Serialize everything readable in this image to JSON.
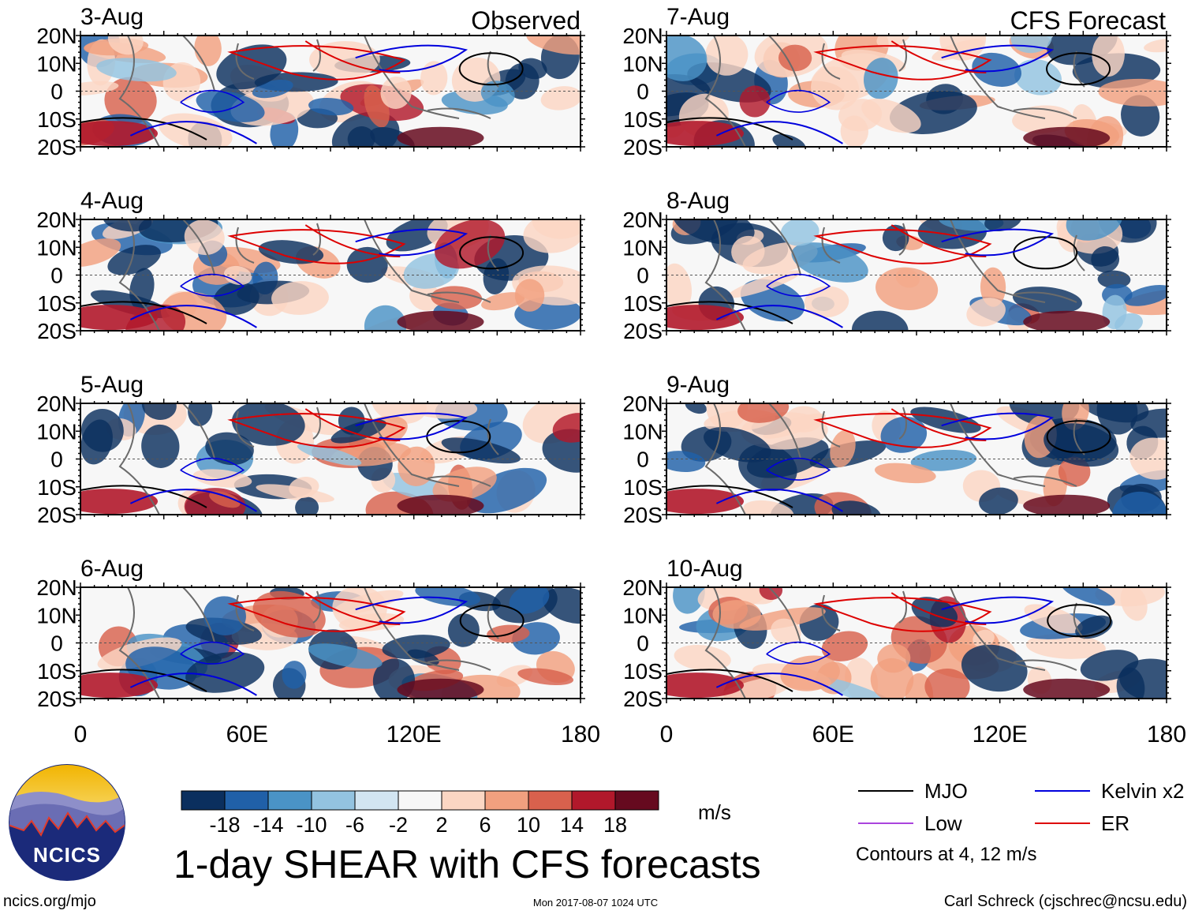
{
  "chart_data": {
    "type": "heatmap",
    "title": "1-day SHEAR with CFS forecasts",
    "units": "m/s",
    "x_ticks": [
      "0",
      "60E",
      "120E",
      "180"
    ],
    "x_values": [
      0,
      60,
      120,
      180
    ],
    "xlim": [
      0,
      180
    ],
    "y_ticks": [
      "20N",
      "10N",
      "0",
      "10S",
      "20S"
    ],
    "y_values": [
      20,
      10,
      0,
      -10,
      -20
    ],
    "ylim": [
      -20,
      20
    ],
    "columns": [
      {
        "label": "Observed",
        "panels": [
          {
            "date": "3-Aug",
            "seed": 11
          },
          {
            "date": "4-Aug",
            "seed": 23
          },
          {
            "date": "5-Aug",
            "seed": 37
          },
          {
            "date": "6-Aug",
            "seed": 41
          }
        ]
      },
      {
        "label": "CFS Forecast",
        "panels": [
          {
            "date": "7-Aug",
            "seed": 53
          },
          {
            "date": "8-Aug",
            "seed": 67
          },
          {
            "date": "9-Aug",
            "seed": 71
          },
          {
            "date": "10-Aug",
            "seed": 89
          }
        ]
      }
    ],
    "colorbar": {
      "colors": [
        "#0b2f5e",
        "#2060a8",
        "#4a93c6",
        "#93c3e0",
        "#d2e5f1",
        "#f7f7f7",
        "#fbd6c3",
        "#f1a07f",
        "#d8614d",
        "#b1182b",
        "#660a1f"
      ],
      "labels": [
        "-18",
        "-14",
        "-10",
        "-6",
        "-2",
        "2",
        "6",
        "10",
        "14",
        "18"
      ]
    },
    "legend": [
      {
        "label": "MJO",
        "color": "#000000"
      },
      {
        "label": "Kelvin x2",
        "color": "#0000dd"
      },
      {
        "label": "Low",
        "color": "#aa44dd"
      },
      {
        "label": "ER",
        "color": "#dd0000"
      }
    ],
    "contour_note": "Contours at 4, 12 m/s"
  },
  "footer": {
    "logo_text": "NCICS",
    "site": "ncics.org/mjo",
    "timestamp": "Mon 2017-08-07 1024 UTC",
    "author": "Carl Schreck (cjschrec@ncsu.edu)"
  }
}
